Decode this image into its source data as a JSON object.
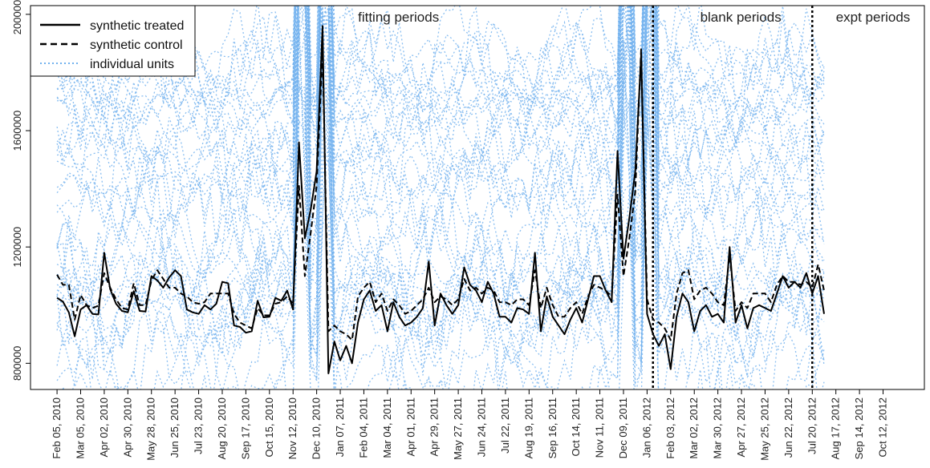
{
  "chart_data": {
    "type": "line",
    "title": "",
    "xlabel": "",
    "ylabel": "",
    "ylim": [
      710000,
      2030000
    ],
    "y_ticks": [
      800000,
      1200000,
      1600000,
      2000000
    ],
    "y_tick_labels": [
      "800000",
      "1200000",
      "1600000",
      "2000000"
    ],
    "x_tick_labels": [
      "Feb 05, 2010",
      "Mar 05, 2010",
      "Apr 02, 2010",
      "Apr 30, 2010",
      "May 28, 2010",
      "Jun 25, 2010",
      "Jul 23, 2010",
      "Aug 20, 2010",
      "Sep 17, 2010",
      "Oct 15, 2010",
      "Nov 12, 2010",
      "Dec 10, 2010",
      "Jan 07, 2011",
      "Feb 04, 2011",
      "Mar 04, 2011",
      "Apr 01, 2011",
      "Apr 29, 2011",
      "May 27, 2011",
      "Jun 24, 2011",
      "Jul 22, 2011",
      "Aug 19, 2011",
      "Sep 16, 2011",
      "Oct 14, 2011",
      "Nov 11, 2011",
      "Dec 09, 2011",
      "Jan 06, 2012",
      "Feb 03, 2012",
      "Mar 02, 2012",
      "Mar 30, 2012",
      "Apr 27, 2012",
      "May 25, 2012",
      "Jun 22, 2012",
      "Jul 20, 2012",
      "Aug 17, 2012",
      "Sep 14, 2012",
      "Oct 12, 2012"
    ],
    "x_tick_weeks": [
      0,
      4,
      8,
      12,
      16,
      20,
      24,
      28,
      32,
      36,
      40,
      44,
      48,
      52,
      56,
      60,
      64,
      68,
      72,
      76,
      80,
      84,
      88,
      92,
      96,
      100,
      104,
      108,
      112,
      116,
      120,
      124,
      128,
      132,
      136,
      140
    ],
    "x_range_weeks": [
      -4.5,
      147
    ],
    "grid": false,
    "legend_position": "top-left",
    "legend": [
      {
        "label": "synthetic treated",
        "style": "solid",
        "color": "#000000"
      },
      {
        "label": "synthetic control",
        "style": "dashed",
        "color": "#000000"
      },
      {
        "label": "individual units",
        "style": "dotted",
        "color": "#74b3ee"
      }
    ],
    "vlines": [
      {
        "week": 101,
        "style": "dotted"
      },
      {
        "week": 128,
        "style": "dotted"
      }
    ],
    "annotations": [
      {
        "text": "fitting periods",
        "week": 51
      },
      {
        "text": "blank periods",
        "week": 109
      },
      {
        "text": "expt periods",
        "week": 132
      }
    ],
    "series": [
      {
        "name": "synthetic treated",
        "style": "solid",
        "values": [
          1025000,
          1012000,
          975000,
          893000,
          985000,
          1000000,
          970000,
          968000,
          1180000,
          1055000,
          1005000,
          980000,
          975000,
          1048000,
          980000,
          978000,
          1100000,
          1085000,
          1060000,
          1095000,
          1120000,
          1100000,
          985000,
          975000,
          970000,
          1000000,
          985000,
          1005000,
          1080000,
          1075000,
          930000,
          925000,
          905000,
          910000,
          1015000,
          958000,
          960000,
          1025000,
          1015000,
          1050000,
          985000,
          1560000,
          1230000,
          1330000,
          1460000,
          1960000,
          765000,
          875000,
          810000,
          860000,
          800000,
          940000,
          1020000,
          1050000,
          980000,
          1000000,
          910000,
          1010000,
          960000,
          930000,
          940000,
          960000,
          990000,
          1150000,
          930000,
          1040000,
          1000000,
          970000,
          1000000,
          1130000,
          1070000,
          1050000,
          1010000,
          1080000,
          1040000,
          960000,
          960000,
          940000,
          990000,
          985000,
          970000,
          1180000,
          910000,
          1030000,
          960000,
          930000,
          900000,
          950000,
          990000,
          940000,
          1020000,
          1100000,
          1100000,
          1050000,
          1010000,
          1530000,
          1160000,
          1300000,
          1460000,
          1860000,
          970000,
          900000,
          860000,
          900000,
          780000,
          960000,
          1040000,
          1010000,
          910000,
          980000,
          1000000,
          960000,
          970000,
          940000,
          1200000,
          940000,
          1000000,
          920000,
          990000,
          1000000,
          990000,
          980000,
          1040000,
          1100000,
          1060000,
          1080000,
          1060000,
          1110000,
          1040000,
          1100000,
          970000
        ]
      },
      {
        "name": "synthetic control",
        "style": "dashed",
        "values": [
          1105000,
          1070000,
          1070000,
          950000,
          1035000,
          1000000,
          990000,
          998000,
          1110000,
          1060000,
          1020000,
          990000,
          985000,
          1075000,
          1000000,
          1000000,
          1085000,
          1120000,
          1090000,
          1060000,
          1060000,
          1040000,
          1030000,
          1010000,
          1005000,
          1010000,
          1040000,
          1040000,
          1040000,
          1040000,
          970000,
          940000,
          930000,
          920000,
          990000,
          965000,
          965000,
          1005000,
          1010000,
          1030000,
          1005000,
          1410000,
          1100000,
          1250000,
          1410000,
          1880000,
          910000,
          930000,
          910000,
          900000,
          880000,
          1030000,
          1060000,
          1080000,
          1010000,
          1040000,
          980000,
          1020000,
          1000000,
          970000,
          980000,
          1000000,
          1020000,
          1060000,
          1010000,
          1030000,
          1020000,
          1000000,
          1020000,
          1090000,
          1050000,
          1060000,
          1040000,
          1060000,
          1050000,
          1010000,
          1010000,
          1000000,
          1020000,
          1020000,
          1000000,
          1120000,
          990000,
          1060000,
          1000000,
          960000,
          960000,
          990000,
          1010000,
          970000,
          1030000,
          1070000,
          1060000,
          1050000,
          1030000,
          1380000,
          1100000,
          1230000,
          1390000,
          1880000,
          1020000,
          950000,
          940000,
          920000,
          880000,
          1040000,
          1110000,
          1120000,
          1020000,
          1050000,
          1060000,
          1040000,
          1010000,
          1000000,
          1170000,
          980000,
          1010000,
          990000,
          1040000,
          1040000,
          1040000,
          1010000,
          1070000,
          1100000,
          1080000,
          1080000,
          1070000,
          1080000,
          1060000,
          1140000,
          1050000
        ]
      }
    ],
    "units_count": 38
  }
}
